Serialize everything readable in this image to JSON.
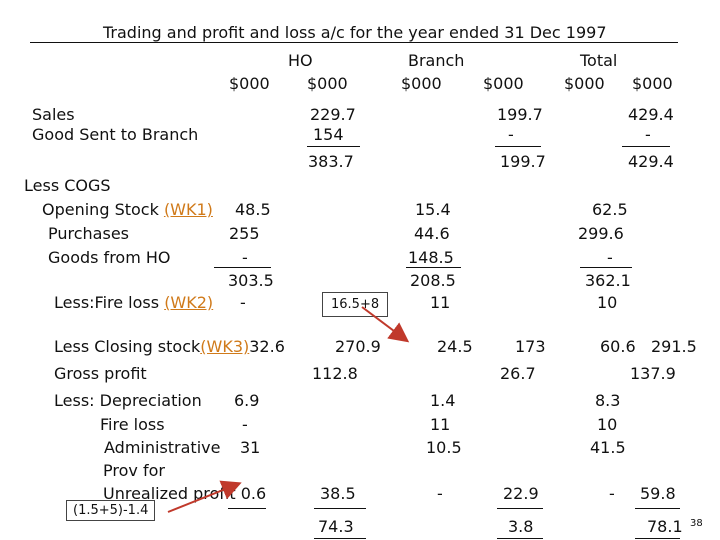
{
  "title": "Trading and profit and loss a/c for the year ended 31 Dec 1997",
  "headers": {
    "ho": "HO",
    "branch": "Branch",
    "total": "Total",
    "unit": "$000"
  },
  "rows": {
    "sales": {
      "label": "Sales",
      "ho": "229.7",
      "branch": "199.7",
      "total": "429.4"
    },
    "goods_sent": {
      "label": "Good Sent to Branch",
      "ho": "154",
      "branch": "-",
      "total": "-"
    },
    "subtotal": {
      "ho": "383.7",
      "branch": "199.7",
      "total": "429.4"
    },
    "less_cogs": {
      "label": "Less COGS"
    },
    "opening_stock": {
      "label": "Opening Stock",
      "link": "(WK1)",
      "ho": "48.5",
      "branch": "15.4",
      "total": "62.5"
    },
    "purchases": {
      "label": "Purchases",
      "ho": "255",
      "branch": "44.6",
      "total": "299.6"
    },
    "goods_from_ho": {
      "label": "Goods from HO",
      "ho": "-",
      "branch": "148.5",
      "total": "-"
    },
    "cogs_subtotal": {
      "ho": "303.5",
      "branch": "208.5",
      "total": "362.1"
    },
    "fire_loss": {
      "label": "Less:Fire loss",
      "link": "(WK2)",
      "ho": "-",
      "branch": "11",
      "total": "10"
    },
    "closing_stock": {
      "label": "Less Closing stock",
      "link": "(WK3)",
      "ho": "32.6",
      "ho_cogs": "270.9",
      "branch": "24.5",
      "branch_cogs": "173",
      "total": "60.6",
      "total_cogs": "291.5"
    },
    "gross_profit": {
      "label": "Gross profit",
      "ho": "112.8",
      "branch": "26.7",
      "total": "137.9"
    },
    "depreciation": {
      "label": "Less: Depreciation",
      "ho": "6.9",
      "branch": "1.4",
      "total": "8.3"
    },
    "fire_loss_exp": {
      "label": "Fire loss",
      "ho": "-",
      "branch": "11",
      "total": "10"
    },
    "administrative": {
      "label": "Administrative",
      "ho": "31",
      "branch": "10.5",
      "total": "41.5"
    },
    "prov_for": {
      "label": "Prov for"
    },
    "unrealized": {
      "label": "Unrealized profit",
      "ho": "0.6",
      "ho_total": "38.5",
      "branch": "-",
      "branch_total": "22.9",
      "total": "-",
      "total_total": "59.8"
    },
    "net_profit": {
      "ho": "74.3",
      "branch": "3.8",
      "total": "78.1"
    }
  },
  "notes": {
    "fire_loss_calc": "16.5+8",
    "unrealized_calc": "(1.5+5)-1.4"
  },
  "slide_number": "38",
  "colors": {
    "link": "#d07a1a",
    "arrow": "#c0392b"
  }
}
